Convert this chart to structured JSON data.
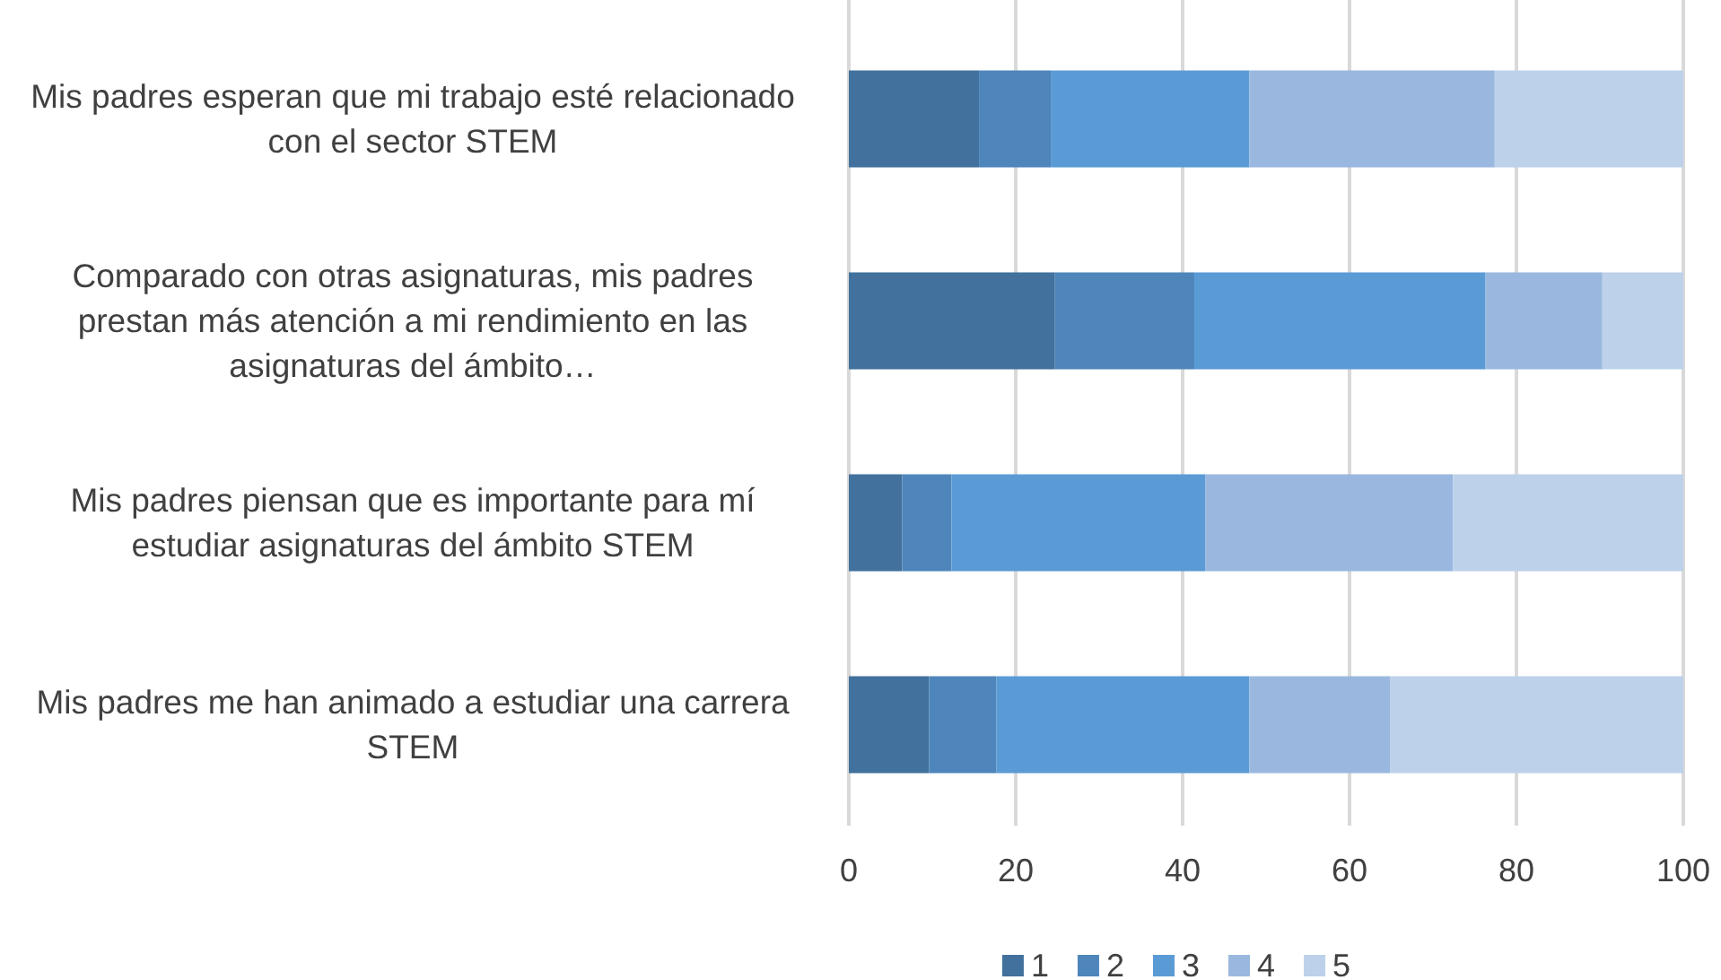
{
  "chart_data": {
    "type": "bar",
    "orientation": "horizontal",
    "stacked": true,
    "categories": [
      "Mis padres esperan que mi trabajo esté relacionado con el sector STEM",
      "Comparado con otras asignaturas, mis padres prestan más atención a mi rendimiento en las asignaturas del ámbito…",
      "Mis padres piensan que es importante para mí estudiar asignaturas del ámbito STEM",
      "Mis padres me han animado a estudiar una carrera STEM"
    ],
    "series": [
      {
        "name": "1",
        "color": "#41719c",
        "values": [
          15.6,
          24.7,
          6.4,
          9.6
        ]
      },
      {
        "name": "2",
        "color": "#4e86bb",
        "values": [
          8.6,
          16.7,
          5.9,
          8.1
        ]
      },
      {
        "name": "3",
        "color": "#5b9bd5",
        "values": [
          23.8,
          34.9,
          30.4,
          30.3
        ]
      },
      {
        "name": "4",
        "color": "#9ab8df",
        "values": [
          29.4,
          14.0,
          29.7,
          16.9
        ]
      },
      {
        "name": "5",
        "color": "#bdd1ea",
        "values": [
          22.6,
          9.7,
          27.6,
          35.1
        ]
      }
    ],
    "xlim": [
      0,
      100
    ],
    "xticks": [
      0,
      20,
      40,
      60,
      80,
      100
    ],
    "grid": "x",
    "legend": "bottom"
  }
}
